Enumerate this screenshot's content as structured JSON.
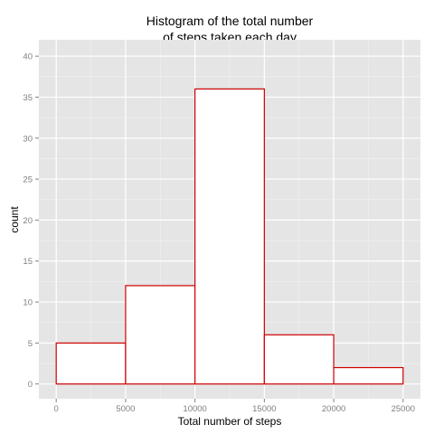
{
  "chart_data": {
    "type": "bar",
    "subtype": "histogram",
    "title_lines": [
      "Histogram of the total number",
      "of steps taken each day"
    ],
    "xlabel": "Total number of steps",
    "ylabel": "count",
    "bins": [
      {
        "start": 0,
        "end": 5000,
        "count": 5
      },
      {
        "start": 5000,
        "end": 10000,
        "count": 12
      },
      {
        "start": 10000,
        "end": 15000,
        "count": 36
      },
      {
        "start": 15000,
        "end": 20000,
        "count": 6
      },
      {
        "start": 20000,
        "end": 25000,
        "count": 2
      }
    ],
    "xlim": [
      -1250,
      26250
    ],
    "ylim": [
      -1.8,
      42
    ],
    "x_ticks": [
      0,
      5000,
      10000,
      15000,
      20000,
      25000
    ],
    "y_ticks": [
      0,
      5,
      10,
      15,
      20,
      25,
      30,
      35,
      40
    ],
    "x_tick_labels": [
      "0",
      "5000",
      "10000",
      "15000",
      "20000",
      "25000"
    ],
    "y_tick_labels": [
      "0",
      "5",
      "10",
      "15",
      "20",
      "25",
      "30",
      "35",
      "40"
    ],
    "grid": true,
    "colors": {
      "panel_background": "#e5e5e5",
      "grid_major": "#ffffff",
      "grid_minor": "#f2f2f2",
      "bar_fill": "#ffffff",
      "bar_outline": "#cc0000",
      "tick_color": "#7f7f7f"
    }
  }
}
